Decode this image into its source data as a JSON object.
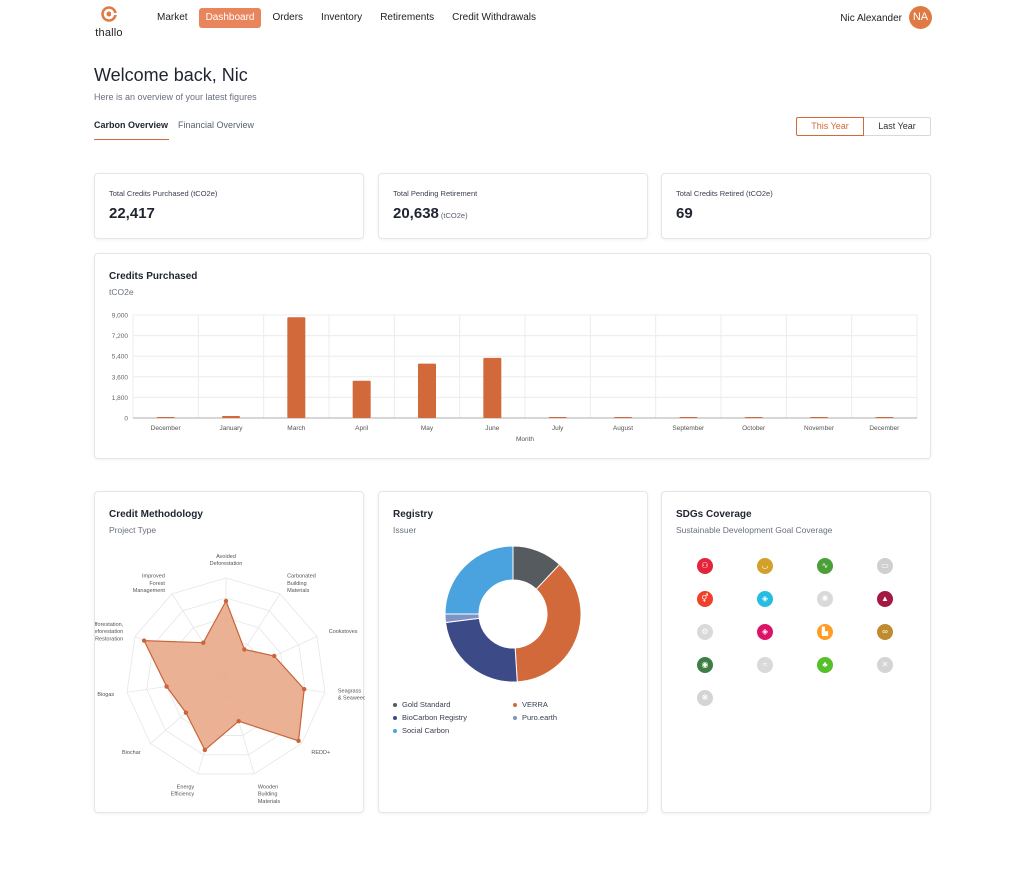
{
  "header": {
    "logo_text": "thallo",
    "nav": [
      {
        "label": "Market",
        "active": false
      },
      {
        "label": "Dashboard",
        "active": true
      },
      {
        "label": "Orders",
        "active": false
      },
      {
        "label": "Inventory",
        "active": false
      },
      {
        "label": "Retirements",
        "active": false
      },
      {
        "label": "Credit Withdrawals",
        "active": false
      }
    ],
    "user_name": "Nic Alexander",
    "avatar_initials": "NA"
  },
  "page": {
    "title": "Welcome back, Nic",
    "subtitle": "Here is an overview of your latest figures",
    "tabs": [
      "Carbon Overview",
      "Financial Overview"
    ],
    "active_tab": "Carbon Overview",
    "period_buttons": [
      "This Year",
      "Last Year"
    ],
    "active_period": "This Year"
  },
  "stats": [
    {
      "label": "Total Credits Purchased (tCO2e)",
      "value": "22,417",
      "unit": ""
    },
    {
      "label": "Total Pending Retirement",
      "value": "20,638",
      "unit": "(tCO2e)"
    },
    {
      "label": "Total Credits Retired (tCO2e)",
      "value": "69",
      "unit": ""
    }
  ],
  "credits_chart": {
    "title": "Credits Purchased",
    "subtitle": "tCO2e"
  },
  "chart_data": [
    {
      "type": "bar",
      "title": "Credits Purchased",
      "subtitle": "tCO2e",
      "xlabel": "Month",
      "ylabel": "",
      "categories": [
        "December",
        "January",
        "March",
        "April",
        "May",
        "June",
        "July",
        "August",
        "September",
        "October",
        "November",
        "December"
      ],
      "values": [
        0,
        180,
        8800,
        3250,
        4750,
        5250,
        0,
        0,
        0,
        0,
        0,
        0
      ],
      "yticks": [
        "9,000",
        "7,200",
        "5,400",
        "3,600",
        "1,800",
        "0"
      ],
      "ylim": [
        0,
        9000
      ],
      "color": "#d2693a",
      "grid": true
    },
    {
      "type": "radar",
      "title": "Credit Methodology",
      "subtitle": "Project Type",
      "categories": [
        "Avoided Deforestation",
        "Carbonated Building Materials",
        "Cookstoves",
        "Seagrass & Seaweeds",
        "REDD+",
        "Wooden Building Materials",
        "Energy Efficiency",
        "Biochar",
        "Biogas",
        "Afforestation, Reforestation & Restoration",
        "Improved Forest Management"
      ],
      "values": [
        0.77,
        0.34,
        0.53,
        0.79,
        0.96,
        0.45,
        0.75,
        0.53,
        0.6,
        0.9,
        0.42
      ],
      "fill": "#e9a98a",
      "stroke": "#c8653a"
    },
    {
      "type": "pie",
      "title": "Registry",
      "subtitle": "Issuer",
      "labels": [
        "Gold Standard",
        "VERRA",
        "BioCarbon Registry",
        "Puro.earth",
        "Social Carbon"
      ],
      "values": [
        12,
        37,
        24,
        2,
        25
      ],
      "colors": [
        "#555b5e",
        "#d2693a",
        "#3d4a88",
        "#7d94c4",
        "#4aa3df"
      ]
    }
  ],
  "methodology_card": {
    "title": "Credit Methodology",
    "subtitle": "Project Type"
  },
  "registry_card": {
    "title": "Registry",
    "subtitle": "Issuer"
  },
  "sdg_card": {
    "title": "SDGs Coverage",
    "subtitle": "Sustainable Development Goal Coverage",
    "goals": [
      {
        "icon": "people-icon",
        "glyph": "⚇",
        "color": "#e5243b"
      },
      {
        "icon": "bowl-icon",
        "glyph": "◡",
        "color": "#d3a029"
      },
      {
        "icon": "heartbeat-icon",
        "glyph": "∿",
        "color": "#4c9f38"
      },
      {
        "icon": "book-icon",
        "glyph": "▭",
        "color": "#cfcfcf"
      },
      {
        "icon": "gender-icon",
        "glyph": "⚥",
        "color": "#ef402b"
      },
      {
        "icon": "water-drop-icon",
        "glyph": "◈",
        "color": "#26bde2"
      },
      {
        "icon": "sun-icon",
        "glyph": "✺",
        "color": "#d9d9d9"
      },
      {
        "icon": "growth-chart-icon",
        "glyph": "▲",
        "color": "#a21942"
      },
      {
        "icon": "gears-icon",
        "glyph": "⚙",
        "color": "#d9d9d9"
      },
      {
        "icon": "equality-icon",
        "glyph": "◈",
        "color": "#dd1367"
      },
      {
        "icon": "city-icon",
        "glyph": "▙",
        "color": "#fd9d24"
      },
      {
        "icon": "infinity-icon",
        "glyph": "∞",
        "color": "#bf8b2e"
      },
      {
        "icon": "eye-icon",
        "glyph": "◉",
        "color": "#3f7e44"
      },
      {
        "icon": "fish-icon",
        "glyph": "≈",
        "color": "#d9d9d9"
      },
      {
        "icon": "tree-icon",
        "glyph": "♣",
        "color": "#56c02b"
      },
      {
        "icon": "dove-icon",
        "glyph": "✕",
        "color": "#d4d4d4"
      },
      {
        "icon": "partnership-icon",
        "glyph": "❋",
        "color": "#d4d4d4"
      }
    ]
  }
}
